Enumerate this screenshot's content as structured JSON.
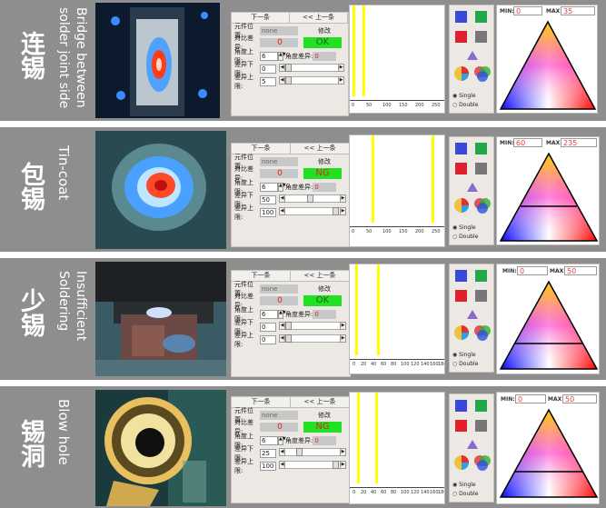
{
  "rows": [
    {
      "zh": "连锡",
      "en": "Bridge between\nsolder joint side",
      "nav": [
        "下一条",
        "<< 上一条"
      ],
      "position_label": "元件位置:",
      "position_value": "none",
      "modify_label": "修改",
      "compare_label": "对比差异:",
      "compare_value": "0",
      "result": "OK",
      "angle_label": "角度上限:",
      "angle_value": "6",
      "angle_diff_label": "角度差异:",
      "angle_diff_value": "0",
      "low_label": "差异下限:",
      "low_value": "0",
      "high_label": "差异上限:",
      "high_value": "5",
      "ticks": [
        "0",
        "50",
        "100",
        "150",
        "200",
        "250"
      ],
      "min_label": "MIN:",
      "min_value": "0",
      "max_label": "MAX:",
      "max_value": "35",
      "single": "Single",
      "double": "Double"
    },
    {
      "zh": "包锡",
      "en": "Tin-coat",
      "nav": [
        "下一条",
        "<< 上一条"
      ],
      "position_label": "元件位置:",
      "position_value": "none",
      "modify_label": "修改",
      "compare_label": "对比差异:",
      "compare_value": "0",
      "result": "NG",
      "angle_label": "角度上限:",
      "angle_value": "6",
      "angle_diff_label": "角度差异:",
      "angle_diff_value": "0",
      "low_label": "差异下限:",
      "low_value": "50",
      "high_label": "差异上限:",
      "high_value": "100",
      "ticks": [
        "0",
        "50",
        "100",
        "150",
        "200",
        "250"
      ],
      "min_label": "MIN:",
      "min_value": "60",
      "max_label": "MAX:",
      "max_value": "235",
      "single": "Single",
      "double": "Double"
    },
    {
      "zh": "少锡",
      "en": "Insufficient\nSoldering",
      "nav": [
        "下一条",
        "<< 上一条"
      ],
      "position_label": "元件位置:",
      "position_value": "none",
      "modify_label": "修改",
      "compare_label": "对比差异:",
      "compare_value": "0",
      "result": "OK",
      "angle_label": "角度上限:",
      "angle_value": "6",
      "angle_diff_label": "角度差异:",
      "angle_diff_value": "0",
      "low_label": "差异下限:",
      "low_value": "0",
      "high_label": "差异上限:",
      "high_value": "0",
      "ticks": [
        "0",
        "20",
        "40",
        "60",
        "80",
        "100",
        "120",
        "140",
        "160",
        "180"
      ],
      "min_label": "MIN:",
      "min_value": "0",
      "max_label": "MAX:",
      "max_value": "50",
      "single": "Single",
      "double": "Double"
    },
    {
      "zh": "锡洞",
      "en": "Blow hole",
      "nav": [
        "下一条",
        "<< 上一条"
      ],
      "position_label": "元件位置:",
      "position_value": "none",
      "modify_label": "修改",
      "compare_label": "对比差异:",
      "compare_value": "0",
      "result": "NG",
      "angle_label": "角度上限:",
      "angle_value": "6",
      "angle_diff_label": "角度差异:",
      "angle_diff_value": "0",
      "low_label": "差异下限:",
      "low_value": "25",
      "high_label": "差异上限:",
      "high_value": "100",
      "ticks": [
        "0",
        "20",
        "40",
        "60",
        "80",
        "100",
        "120",
        "140",
        "160",
        "180"
      ],
      "min_label": "MIN:",
      "min_value": "0",
      "max_label": "MAX:",
      "max_value": "50",
      "single": "Single",
      "double": "Double"
    }
  ],
  "colors": {
    "panel_bg": "#8e8e8e",
    "ok_green": "#22e022",
    "ng_red": "#e02020",
    "histogram_bar": "#ffff00"
  },
  "icons": [
    "blue-swatch-icon",
    "green-swatch-icon",
    "red-swatch-icon",
    "gray-swatch-icon",
    "triangle-icon",
    "color-wheel-icon",
    "rgb-circles-icon"
  ]
}
